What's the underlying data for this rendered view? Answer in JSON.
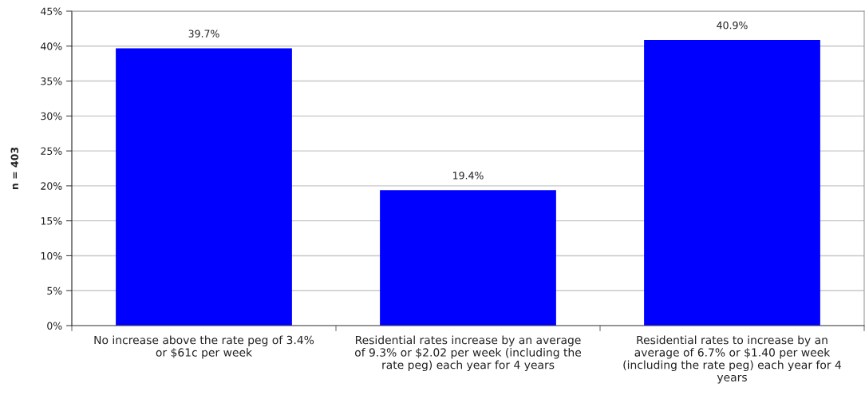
{
  "chart_data": {
    "type": "bar",
    "categories": [
      "No increase above the rate peg of 3.4% or $61c per week",
      "Residential rates increase by an average of 9.3% or $2.02 per week (including the rate peg) each year for 4 years",
      "Residential rates to increase by an average of 6.7% or $1.40 per week (including the rate peg) each year for 4 years"
    ],
    "values": [
      39.7,
      19.4,
      40.9
    ],
    "value_labels": [
      "39.7%",
      "19.4%",
      "40.9%"
    ],
    "color": "#0000ff",
    "ylabel": "n = 403",
    "ylim": [
      0,
      45
    ],
    "yticks": [
      {
        "value": 0,
        "label": "0%"
      },
      {
        "value": 5,
        "label": "5%"
      },
      {
        "value": 10,
        "label": "10%"
      },
      {
        "value": 15,
        "label": "15%"
      },
      {
        "value": 20,
        "label": "20%"
      },
      {
        "value": 25,
        "label": "25%"
      },
      {
        "value": 30,
        "label": "30%"
      },
      {
        "value": 35,
        "label": "35%"
      },
      {
        "value": 40,
        "label": "40%"
      },
      {
        "value": 45,
        "label": "45%"
      }
    ],
    "grid": "y"
  }
}
